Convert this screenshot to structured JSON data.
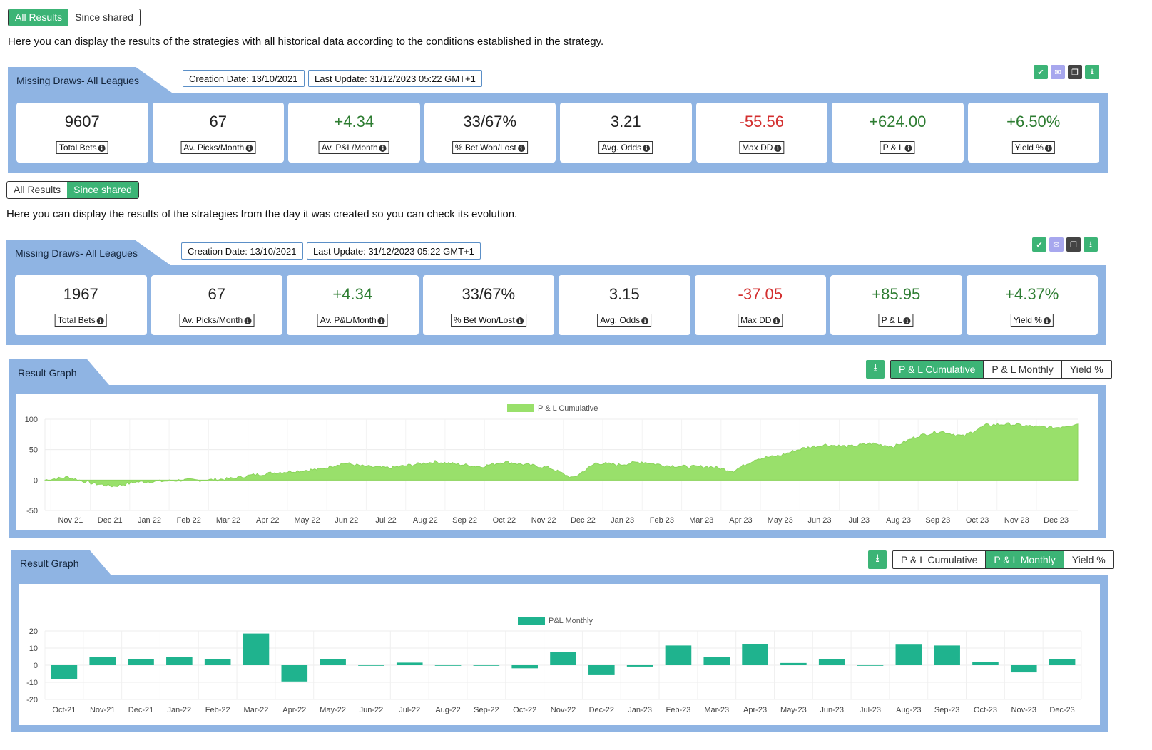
{
  "section1": {
    "toggle": [
      "All Results",
      "Since shared"
    ],
    "active": 0,
    "description": "Here you can display the results of the strategies with all historical data according to the conditions established in the strategy.",
    "title": "Missing Draws- All Leagues",
    "creation_date": "Creation Date: 13/10/2021",
    "last_update": "Last Update: 31/12/2023 05:22 GMT+1",
    "stats": [
      {
        "value": "9607",
        "label": "Total Bets",
        "tone": "neutral"
      },
      {
        "value": "67",
        "label": "Av. Picks/Month",
        "tone": "neutral"
      },
      {
        "value": "+4.34",
        "label": "Av. P&L/Month",
        "tone": "pos"
      },
      {
        "value": "33/67%",
        "label": "% Bet Won/Lost",
        "tone": "neutral"
      },
      {
        "value": "3.21",
        "label": "Avg. Odds",
        "tone": "neutral"
      },
      {
        "value": "-55.56",
        "label": "Max DD",
        "tone": "neg"
      },
      {
        "value": "+624.00",
        "label": "P & L",
        "tone": "pos"
      },
      {
        "value": "+6.50%",
        "label": "Yield %",
        "tone": "pos"
      }
    ]
  },
  "section2": {
    "toggle": [
      "All Results",
      "Since shared"
    ],
    "active": 1,
    "description": "Here you can display the results of the strategies from the day it was created so you can check its evolution.",
    "title": "Missing Draws- All Leagues",
    "creation_date": "Creation Date: 13/10/2021",
    "last_update": "Last Update: 31/12/2023 05:22 GMT+1",
    "stats": [
      {
        "value": "1967",
        "label": "Total Bets",
        "tone": "neutral"
      },
      {
        "value": "67",
        "label": "Av. Picks/Month",
        "tone": "neutral"
      },
      {
        "value": "+4.34",
        "label": "Av. P&L/Month",
        "tone": "pos"
      },
      {
        "value": "33/67%",
        "label": "% Bet Won/Lost",
        "tone": "neutral"
      },
      {
        "value": "3.15",
        "label": "Avg. Odds",
        "tone": "neutral"
      },
      {
        "value": "-37.05",
        "label": "Max DD",
        "tone": "neg"
      },
      {
        "value": "+85.95",
        "label": "P & L",
        "tone": "pos"
      },
      {
        "value": "+4.37%",
        "label": "Yield %",
        "tone": "pos"
      }
    ]
  },
  "graph1": {
    "title": "Result Graph",
    "tabs": [
      "P & L Cumulative",
      "P & L Monthly",
      "Yield %"
    ],
    "active": 0
  },
  "graph2": {
    "title": "Result Graph",
    "tabs": [
      "P & L Cumulative",
      "P & L Monthly",
      "Yield %"
    ],
    "active": 1
  },
  "colors": {
    "accent": "#3cb476",
    "panel": "#8fb4e3",
    "area": "#99e06b",
    "bar": "#1fb38e",
    "pos": "#2e7d32",
    "neg": "#d32f2f"
  },
  "chart_data": [
    {
      "type": "area",
      "legend": "P & L Cumulative",
      "yticks": [
        100,
        50,
        0,
        -50
      ],
      "ylim": [
        -50,
        100
      ],
      "categories": [
        "Nov 21",
        "Dec 21",
        "Jan 22",
        "Feb 22",
        "Mar 22",
        "Apr 22",
        "May 22",
        "Jun 22",
        "Jul 22",
        "Aug 22",
        "Sep 22",
        "Oct 22",
        "Nov 22",
        "Dec 22",
        "Jan 23",
        "Feb 23",
        "Mar 23",
        "Apr 23",
        "May 23",
        "Jun 23",
        "Jul 23",
        "Aug 23",
        "Sep 23",
        "Oct 23",
        "Nov 23",
        "Dec 23"
      ],
      "points": [
        0,
        5,
        -5,
        -10,
        -3,
        -2,
        0,
        0,
        2,
        8,
        12,
        15,
        18,
        28,
        22,
        20,
        25,
        30,
        26,
        22,
        30,
        25,
        20,
        3,
        28,
        25,
        30,
        24,
        22,
        22,
        15,
        35,
        40,
        52,
        58,
        55,
        60,
        55,
        72,
        80,
        72,
        90,
        92,
        88,
        86,
        92
      ],
      "points_month_start": [
        "Oct 21"
      ]
    },
    {
      "type": "bar",
      "legend": "P&L Monthly",
      "yticks": [
        20,
        10,
        0,
        -10,
        -20
      ],
      "ylim": [
        -20,
        20
      ],
      "categories": [
        "Oct-21",
        "Nov-21",
        "Dec-21",
        "Jan-22",
        "Feb-22",
        "Mar-22",
        "Apr-22",
        "May-22",
        "Jun-22",
        "Jul-22",
        "Aug-22",
        "Sep-22",
        "Oct-22",
        "Nov-22",
        "Dec-22",
        "Jan-23",
        "Feb-23",
        "Mar-23",
        "Apr-23",
        "May-23",
        "Jun-23",
        "Jul-23",
        "Aug-23",
        "Sep-23",
        "Oct-23",
        "Nov-23",
        "Dec-23"
      ],
      "values": [
        -8,
        5,
        3.5,
        5,
        3.5,
        18.5,
        -9.5,
        3.5,
        -0.3,
        1.5,
        -0.2,
        0,
        -1.8,
        7.8,
        -5.8,
        -0.8,
        11.5,
        4.8,
        12.5,
        1.3,
        3.5,
        -0.3,
        12,
        11.5,
        1.8,
        -4.2,
        3.5
      ]
    }
  ]
}
